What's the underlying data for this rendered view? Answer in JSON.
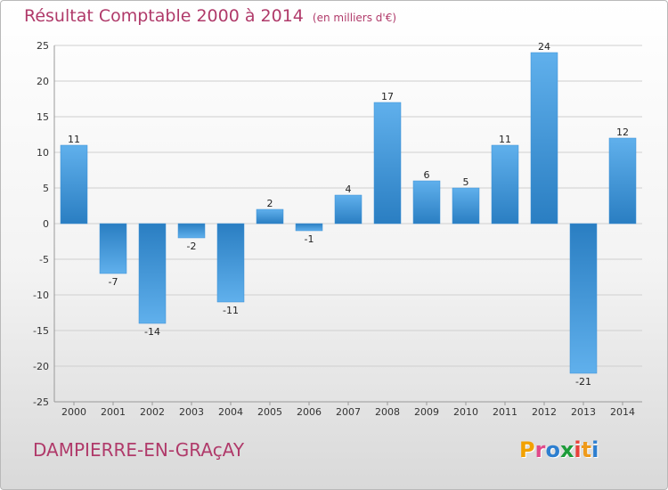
{
  "header": {
    "title": "Résultat Comptable 2000 à 2014",
    "subtitle": "(en milliers d'€)"
  },
  "footer": {
    "commune": "DAMPIERRE-EN-GRAçAY",
    "logo": "Proxiti",
    "logo_colors": [
      "#f2a100",
      "#e04a8a",
      "#2d7fd0",
      "#1e9c3a",
      "#e8403a",
      "#ef9a1a",
      "#2d7fd0"
    ]
  },
  "colors": {
    "title": "#b03a6a",
    "bar_light": "#60b0ec",
    "bar_dark": "#2a7ec2",
    "grid": "#cfcfcf"
  },
  "chart_data": {
    "type": "bar",
    "title": "Résultat Comptable 2000 à 2014",
    "subtitle": "(en milliers d'€)",
    "categories": [
      "2000",
      "2001",
      "2002",
      "2003",
      "2004",
      "2005",
      "2006",
      "2007",
      "2008",
      "2009",
      "2010",
      "2011",
      "2012",
      "2013",
      "2014"
    ],
    "values": [
      11,
      -7,
      -14,
      -2,
      -11,
      2,
      -1,
      4,
      17,
      6,
      5,
      11,
      24,
      -21,
      12
    ],
    "value_labels": [
      "11",
      "-7",
      "-14",
      "-2",
      "-11",
      "2",
      "-1",
      "4",
      "17",
      "6",
      "5",
      "11",
      "24",
      "-21",
      "12"
    ],
    "ylim": [
      -25,
      25
    ],
    "yticks": [
      25,
      20,
      15,
      10,
      5,
      0,
      -5,
      -10,
      -15,
      -20,
      -25
    ],
    "ytick_labels": [
      "25",
      "20",
      "15",
      "10",
      "5",
      "0",
      "-5",
      "-10",
      "-15",
      "-20",
      "-25"
    ],
    "grid": true,
    "legend": "none"
  }
}
